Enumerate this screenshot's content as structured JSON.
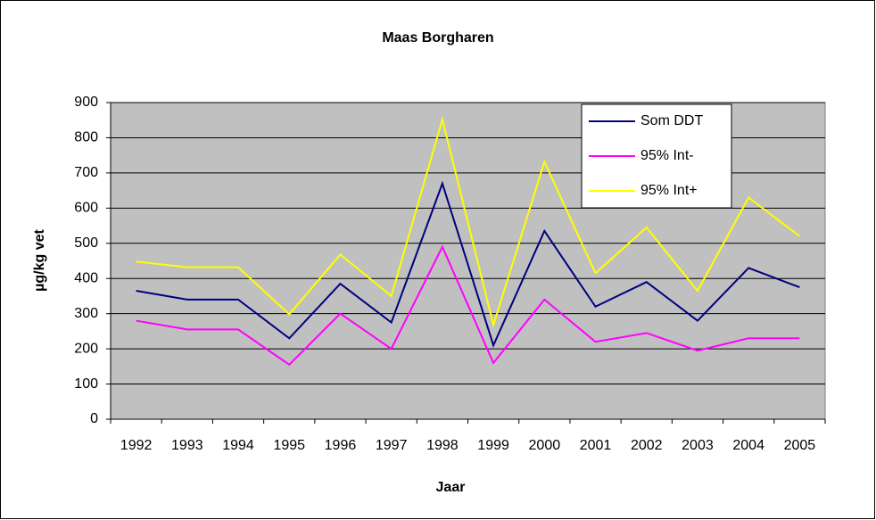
{
  "chart_data": {
    "type": "line",
    "title": "Maas Borgharen",
    "x_label": "Jaar",
    "y_label": "µg/kg vet",
    "categories": [
      "1992",
      "1993",
      "1994",
      "1995",
      "1996",
      "1997",
      "1998",
      "1999",
      "2000",
      "2001",
      "2002",
      "2003",
      "2004",
      "2005"
    ],
    "series": [
      {
        "name": "Som DDT",
        "color": "#000080",
        "values": [
          365,
          340,
          340,
          230,
          385,
          275,
          670,
          210,
          535,
          320,
          390,
          280,
          430,
          375
        ]
      },
      {
        "name": "95% Int-",
        "color": "#ff00ff",
        "values": [
          280,
          255,
          255,
          155,
          300,
          200,
          490,
          160,
          340,
          220,
          245,
          195,
          230,
          230
        ]
      },
      {
        "name": "95% Int+",
        "color": "#ffff00",
        "values": [
          448,
          432,
          432,
          298,
          468,
          350,
          852,
          268,
          732,
          415,
          545,
          365,
          630,
          520
        ]
      }
    ],
    "ylim": [
      0,
      900
    ],
    "yticks": [
      0,
      100,
      200,
      300,
      400,
      500,
      600,
      700,
      800,
      900
    ],
    "grid": true,
    "legend": "top-right",
    "plot_background": "#c0c0c0"
  }
}
